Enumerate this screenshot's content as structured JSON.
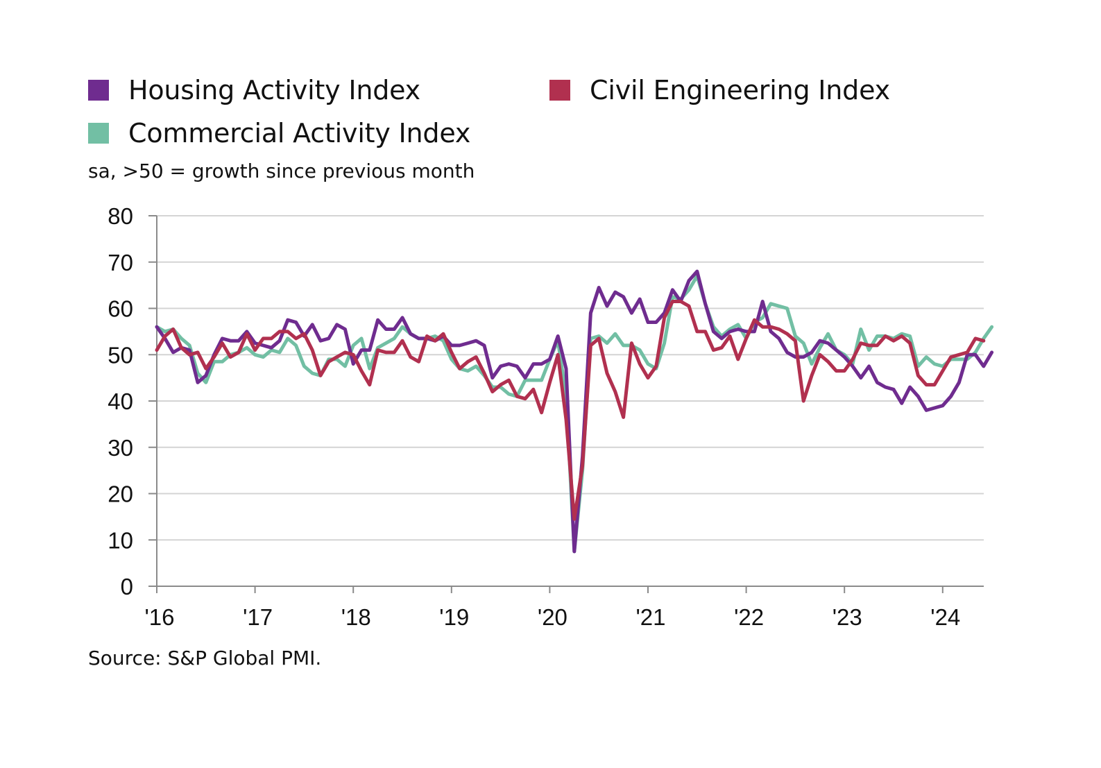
{
  "legend": [
    {
      "label": "Housing Activity Index",
      "color": "#6f2c8f"
    },
    {
      "label": "Civil Engineering Index",
      "color": "#b1304f"
    },
    {
      "label": "Commercial Activity Index",
      "color": "#72bfa4"
    }
  ],
  "note": "sa, >50 = growth since previous month",
  "source": "Source: S&P Global PMI.",
  "chart_data": {
    "type": "line",
    "x_start": "2016-01",
    "x_end": "2024-05",
    "x_ticks": [
      "'16",
      "'17",
      "'18",
      "'19",
      "'20",
      "'21",
      "'22",
      "'23",
      "'24"
    ],
    "y_ticks": [
      "0",
      "10",
      "20",
      "30",
      "40",
      "50",
      "60",
      "70",
      "80"
    ],
    "ylim": [
      0,
      80
    ],
    "grid": "horizontal",
    "legend_position": "top",
    "series": [
      {
        "name": "Housing Activity Index",
        "color": "#6f2c8f",
        "values": [
          56,
          53.5,
          50.5,
          51.5,
          51,
          44,
          45.5,
          50,
          53.5,
          53,
          53,
          55,
          52.5,
          52,
          51.5,
          53,
          57.5,
          57,
          54,
          56.5,
          53,
          53.5,
          56.5,
          55.5,
          48,
          51,
          51,
          57.5,
          55.5,
          55.5,
          58,
          54.5,
          53.5,
          53.5,
          53,
          54,
          52,
          52,
          52.5,
          53,
          52,
          45,
          47.5,
          48,
          47.5,
          45,
          48,
          48,
          49,
          54,
          47,
          7.5,
          28,
          59,
          64.5,
          60.5,
          63.5,
          62.5,
          59,
          62,
          57,
          57,
          59,
          64,
          61.5,
          66,
          68,
          61,
          55,
          53.5,
          55,
          55.5,
          55,
          55,
          61.5,
          55,
          53.5,
          50.5,
          49.5,
          49.5,
          50.5,
          53,
          52.5,
          51,
          49.5,
          47.5,
          45,
          47.5,
          44,
          43,
          42.5,
          39.5,
          43,
          41,
          38,
          38.5,
          39,
          41,
          44,
          50,
          50,
          47.5,
          50.5
        ]
      },
      {
        "name": "Civil Engineering Index",
        "color": "#b1304f",
        "values": [
          51,
          54,
          55.5,
          51.5,
          50,
          50.5,
          47,
          49.5,
          52.5,
          49.5,
          50.5,
          54.5,
          51,
          53.5,
          53.5,
          55,
          55,
          53.5,
          54.5,
          51,
          45.5,
          48.5,
          49.5,
          50.5,
          50,
          46.5,
          43.5,
          51,
          50.5,
          50.5,
          53,
          49.5,
          48.5,
          54,
          53,
          54.5,
          50.5,
          47,
          48.5,
          49.5,
          46,
          42,
          43.5,
          44.5,
          41,
          40.5,
          42.5,
          37.5,
          44,
          50,
          36,
          14.5,
          26,
          52,
          53.5,
          46,
          42,
          36.5,
          52.5,
          48,
          45,
          47.5,
          58,
          61.5,
          61.5,
          60.5,
          55,
          55,
          51,
          51.5,
          54,
          49,
          53.5,
          57.5,
          56,
          56,
          55.5,
          54.5,
          53,
          40,
          45.5,
          50,
          48.5,
          46.5,
          46.5,
          49,
          52.5,
          52,
          52,
          54,
          53,
          54,
          52.5,
          45.5,
          43.5,
          43.5,
          46.5,
          49.5,
          50,
          50.5,
          53.5,
          53
        ]
      },
      {
        "name": "Commercial Activity Index",
        "color": "#72bfa4",
        "values": [
          56,
          55,
          55.5,
          53.5,
          52,
          46,
          44,
          48.5,
          48.5,
          50,
          50.5,
          51.5,
          50,
          49.5,
          51,
          50.5,
          53.5,
          52,
          47.5,
          46,
          45.5,
          49,
          49,
          47.5,
          52,
          53.5,
          47,
          51.5,
          52.5,
          53.5,
          56,
          54.5,
          53.5,
          53.5,
          54,
          53,
          49,
          47,
          46.5,
          47.5,
          45.5,
          43,
          43,
          41.5,
          41,
          44.5,
          44.5,
          44.5,
          49,
          53,
          41,
          7.5,
          25,
          53.5,
          54,
          52.5,
          54.5,
          52,
          52,
          51,
          48,
          47,
          52.5,
          62.5,
          62,
          64,
          67,
          61,
          56,
          54,
          55.5,
          56.5,
          53.5,
          57,
          58,
          61,
          60.5,
          60,
          54,
          52.5,
          48,
          51.5,
          54.5,
          51,
          50,
          48,
          55.5,
          51,
          54,
          54,
          53.5,
          54.5,
          54,
          47.5,
          49.5,
          48,
          47.5,
          49,
          49,
          49,
          50.5,
          53.5,
          56
        ]
      }
    ]
  }
}
